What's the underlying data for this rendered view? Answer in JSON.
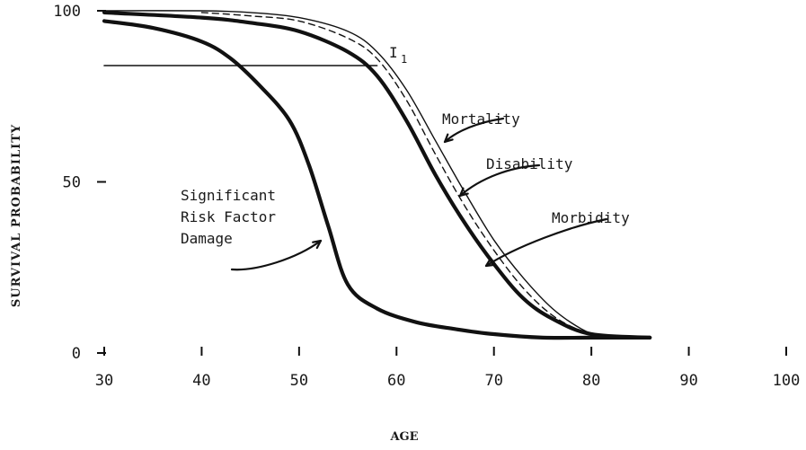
{
  "chart_data": {
    "type": "line",
    "title": "",
    "xlabel": "AGE",
    "ylabel": "SURVIVAL PROBABILITY",
    "xlim": [
      30,
      100
    ],
    "ylim": [
      0,
      100
    ],
    "x_ticks": [
      "30",
      "40",
      "50",
      "60",
      "70",
      "80",
      "90",
      "100"
    ],
    "y_ticks": [
      "0",
      "50",
      "100"
    ],
    "grid": false,
    "legend": "none",
    "series": [
      {
        "name": "Mortality",
        "style": "thin",
        "x": [
          30,
          40,
          45,
          50,
          55,
          58,
          61,
          64,
          67,
          70,
          73,
          76,
          79,
          81,
          83,
          86
        ],
        "y": [
          100,
          100,
          99.5,
          98,
          94,
          88,
          77,
          62,
          47,
          33,
          22,
          13,
          7,
          5,
          4.5,
          4.5
        ]
      },
      {
        "name": "Disability",
        "style": "dashed",
        "x": [
          40,
          45,
          50,
          55,
          58,
          61,
          64,
          67,
          70,
          73,
          76,
          79,
          82,
          86
        ],
        "y": [
          99.5,
          98.5,
          97,
          92,
          86,
          74,
          58,
          43,
          30,
          19,
          11,
          6.5,
          5,
          4.5
        ]
      },
      {
        "name": "Morbidity",
        "style": "thick",
        "x": [
          30,
          40,
          45,
          50,
          55,
          58,
          61,
          64,
          67,
          70,
          73,
          76,
          80,
          86
        ],
        "y": [
          99.5,
          98,
          96.5,
          94,
          88,
          81,
          68,
          52,
          38,
          26,
          16,
          10,
          5.5,
          4.5
        ]
      },
      {
        "name": "Significant Risk Factor Damage",
        "style": "thick",
        "x": [
          30,
          35,
          40,
          43,
          46,
          49,
          51,
          53,
          55,
          58,
          62,
          66,
          70,
          75,
          80,
          86
        ],
        "y": [
          97,
          95,
          91,
          86,
          78,
          68,
          55,
          37,
          20,
          13,
          9,
          7,
          5.5,
          4.5,
          4.5,
          4.5
        ]
      },
      {
        "name": "I1",
        "style": "thin-flat",
        "x": [
          30,
          40,
          50,
          58
        ],
        "y": [
          84,
          84,
          84,
          84
        ]
      }
    ],
    "annotations": [
      {
        "text": "I",
        "subscript": "1",
        "series": "I1",
        "anchor": [
          58,
          84
        ]
      },
      {
        "text": "Mortality",
        "series": "Mortality",
        "anchor": [
          64,
          62
        ]
      },
      {
        "text": "Disability",
        "series": "Disability",
        "anchor": [
          66,
          46
        ]
      },
      {
        "text": "Morbidity",
        "series": "Morbidity",
        "anchor": [
          69,
          26
        ]
      },
      {
        "lines": [
          "Significant",
          "Risk Factor",
          "Damage"
        ],
        "series": "Significant Risk Factor Damage",
        "anchor": [
          53,
          32
        ]
      }
    ]
  }
}
